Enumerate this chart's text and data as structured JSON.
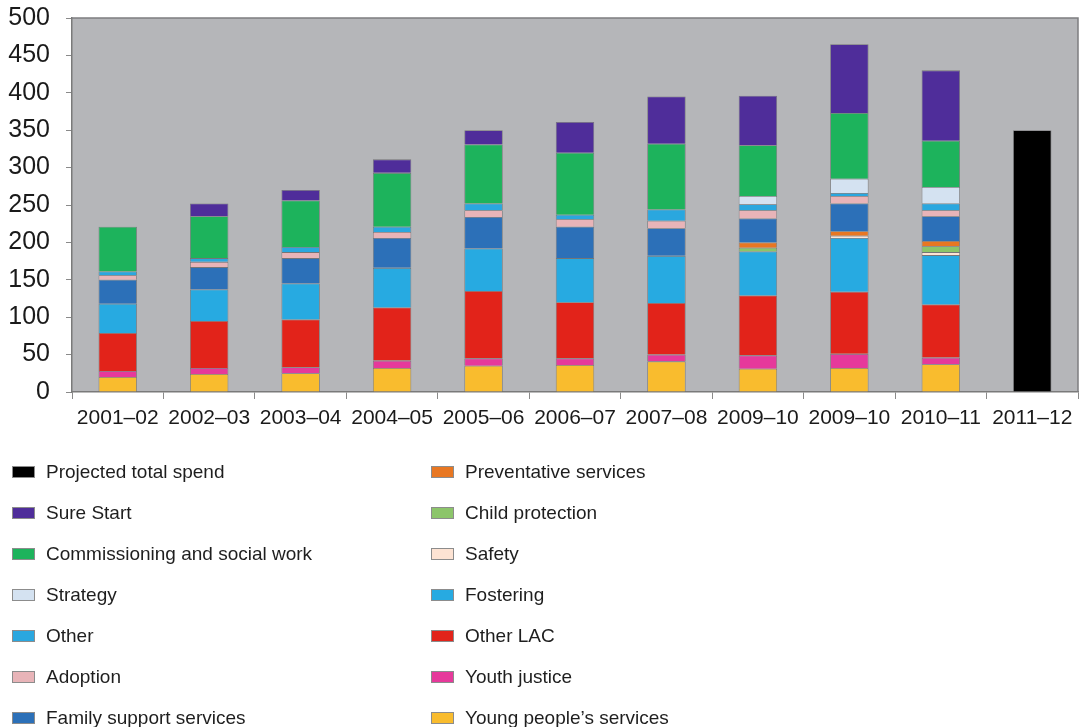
{
  "chart_data": {
    "type": "bar",
    "stacked": true,
    "legend": "bottom",
    "categories": [
      "2001–02",
      "2002–03",
      "2003–04",
      "2004–05",
      "2005–06",
      "2006–07",
      "2007–08",
      "2009–10",
      "2009–10",
      "2010–11",
      "2011–12"
    ],
    "ylim": [
      0,
      500
    ],
    "yticks": [
      0,
      50,
      100,
      150,
      200,
      250,
      300,
      350,
      400,
      450,
      500
    ],
    "series": [
      {
        "name": "Young people’s services",
        "color": "#f9bc2e",
        "values": [
          20,
          24,
          25,
          32,
          35,
          36,
          41,
          31,
          32,
          37,
          null
        ]
      },
      {
        "name": "Youth justice",
        "color": "#e6399b",
        "values": [
          8,
          8,
          8,
          10,
          10,
          9,
          9,
          18,
          19,
          9,
          null
        ]
      },
      {
        "name": "Other LAC",
        "color": "#e2231a",
        "values": [
          51,
          63,
          64,
          71,
          90,
          75,
          69,
          80,
          83,
          71,
          null
        ]
      },
      {
        "name": "Fostering",
        "color": "#27aae1",
        "values": [
          39,
          42,
          48,
          53,
          57,
          59,
          63,
          59,
          72,
          66,
          null
        ]
      },
      {
        "name": "Safety",
        "color": "#fde3d3",
        "values": [
          null,
          null,
          null,
          null,
          null,
          null,
          null,
          null,
          3,
          4,
          null
        ]
      },
      {
        "name": "Child protection",
        "color": "#8cc56a",
        "values": [
          null,
          null,
          null,
          null,
          null,
          null,
          null,
          5,
          null,
          8,
          null
        ]
      },
      {
        "name": "Preventative services",
        "color": "#e87722",
        "values": [
          null,
          null,
          null,
          null,
          null,
          null,
          null,
          7,
          6,
          7,
          null
        ]
      },
      {
        "name": "Family support services",
        "color": "#2c70b8",
        "values": [
          32,
          30,
          34,
          40,
          42,
          42,
          37,
          32,
          37,
          33,
          null
        ]
      },
      {
        "name": "Adoption",
        "color": "#e8b4b8",
        "values": [
          6,
          7,
          8,
          8,
          9,
          10,
          10,
          11,
          10,
          8,
          null
        ]
      },
      {
        "name": "Other",
        "color": "#2aa7df",
        "values": [
          5,
          5,
          7,
          7,
          9,
          6,
          15,
          8,
          4,
          9,
          null
        ]
      },
      {
        "name": "Strategy",
        "color": "#d4e2f1",
        "values": [
          null,
          null,
          null,
          null,
          null,
          null,
          null,
          11,
          19,
          22,
          null
        ]
      },
      {
        "name": "Commissioning and social work",
        "color": "#1db35c",
        "values": [
          60,
          56,
          62,
          72,
          79,
          83,
          88,
          68,
          88,
          62,
          null
        ]
      },
      {
        "name": "Sure Start",
        "color": "#4f2d9a",
        "values": [
          null,
          17,
          14,
          18,
          19,
          41,
          63,
          66,
          92,
          94,
          null
        ]
      },
      {
        "name": "Projected total spend",
        "color": "#000000",
        "values": [
          null,
          null,
          null,
          null,
          null,
          null,
          null,
          null,
          null,
          null,
          350
        ]
      }
    ]
  }
}
